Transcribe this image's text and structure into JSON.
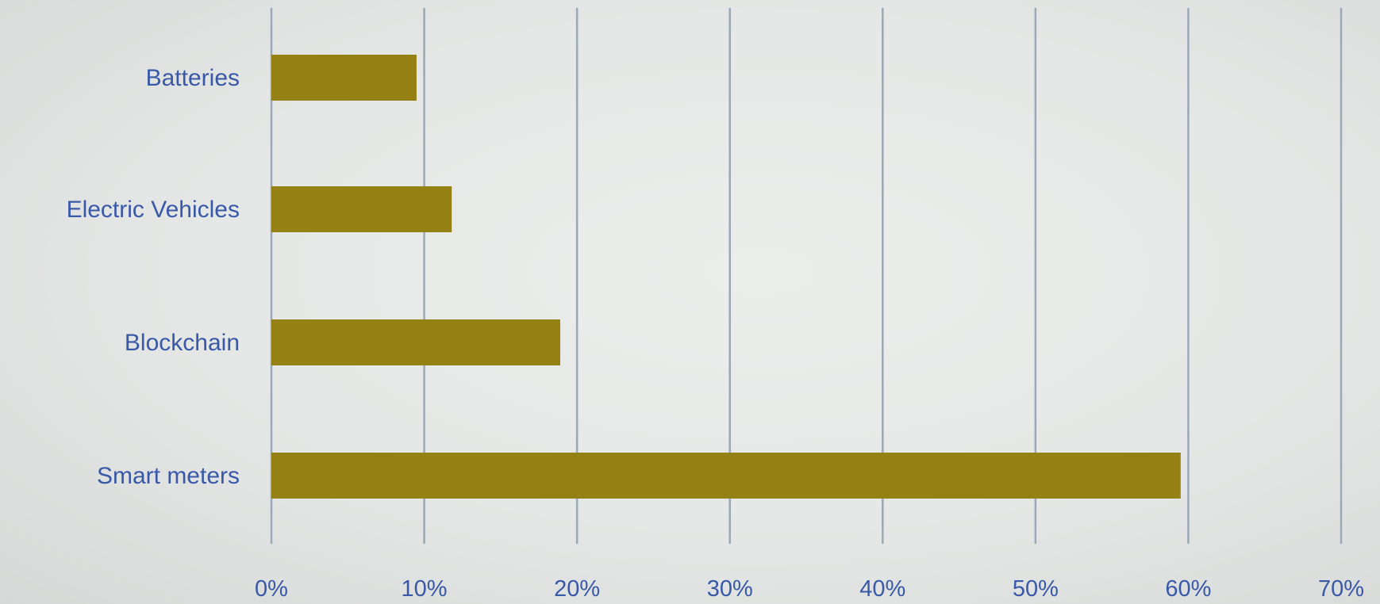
{
  "chart_data": {
    "type": "bar",
    "orientation": "horizontal",
    "categories": [
      "Batteries",
      "Electric Vehicles",
      "Blockchain",
      "Smart meters"
    ],
    "values": [
      9.5,
      11.8,
      18.9,
      59.5
    ],
    "value_unit": "%",
    "xlim": [
      0,
      70
    ],
    "x_ticks": [
      "0%",
      "10%",
      "20%",
      "30%",
      "40%",
      "50%",
      "60%",
      "70%"
    ],
    "grid": true,
    "legend": false,
    "bar_color": "#958014",
    "label_color": "#3a58a8",
    "title": "",
    "xlabel": "",
    "ylabel": ""
  }
}
